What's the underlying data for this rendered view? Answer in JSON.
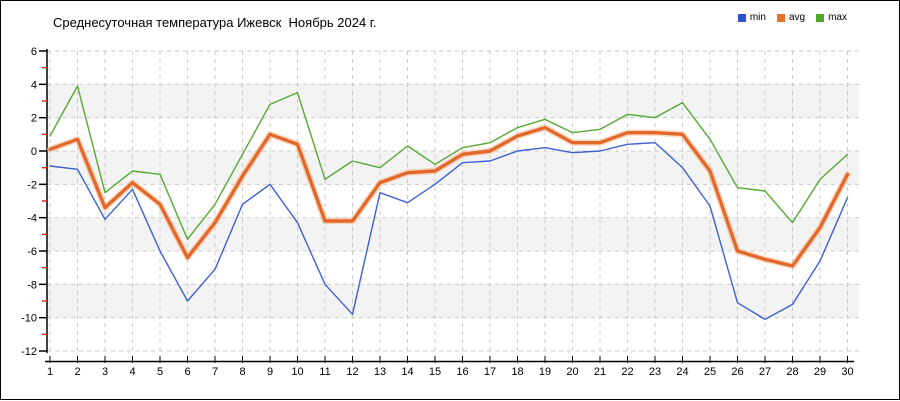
{
  "header": {
    "title": "Среднесуточная температура Ижевск  Ноябрь 2024 г."
  },
  "legend": {
    "items": [
      {
        "label": "min",
        "color": "#2d50d6"
      },
      {
        "label": "avg",
        "color": "#e8712f"
      },
      {
        "label": "max",
        "color": "#4faa28"
      }
    ]
  },
  "chart_data": {
    "type": "line",
    "title": "Среднесуточная температура Ижевск  Ноябрь 2024 г.",
    "xlabel": "",
    "ylabel": "",
    "x": [
      1,
      2,
      3,
      4,
      5,
      6,
      7,
      8,
      9,
      10,
      11,
      12,
      13,
      14,
      15,
      16,
      17,
      18,
      19,
      20,
      21,
      22,
      23,
      24,
      25,
      26,
      27,
      28,
      29,
      30
    ],
    "series": [
      {
        "name": "max",
        "color": "#55a833",
        "line_width": 1.4,
        "values": [
          0.9,
          3.9,
          -2.5,
          -1.2,
          -1.4,
          -5.3,
          -3.2,
          -0.2,
          2.8,
          3.5,
          -1.7,
          -0.6,
          -1.0,
          0.3,
          -0.8,
          0.2,
          0.5,
          1.4,
          1.9,
          1.1,
          1.3,
          2.2,
          2.0,
          2.9,
          0.7,
          -2.2,
          -2.4,
          -4.3,
          -1.7,
          -0.2
        ]
      },
      {
        "name": "min",
        "color": "#3d61d1",
        "line_width": 1.4,
        "values": [
          -0.9,
          -1.1,
          -4.1,
          -2.3,
          -6.0,
          -9.0,
          -7.1,
          -3.2,
          -2.0,
          -4.3,
          -8.0,
          -9.8,
          -2.5,
          -3.1,
          -2.0,
          -0.7,
          -0.6,
          0.0,
          0.2,
          -0.1,
          0.0,
          0.4,
          0.5,
          -1.0,
          -3.3,
          -9.1,
          -10.1,
          -9.2,
          -6.6,
          -2.8
        ]
      },
      {
        "name": "avg",
        "color": "#e4672c",
        "line_width": 3.4,
        "halo_color": "#f6bd92",
        "values": [
          0.1,
          0.7,
          -3.4,
          -1.9,
          -3.2,
          -6.4,
          -4.3,
          -1.5,
          1.0,
          0.4,
          -4.2,
          -4.2,
          -1.9,
          -1.3,
          -1.2,
          -0.2,
          0.0,
          0.9,
          1.4,
          0.5,
          0.5,
          1.1,
          1.1,
          1.0,
          -1.2,
          -6.0,
          -6.5,
          -6.9,
          -4.6,
          -1.4
        ]
      }
    ],
    "ylim": [
      -12,
      6
    ],
    "y_major_ticks": [
      6,
      4,
      2,
      0,
      -2,
      -4,
      -6,
      -8,
      -10,
      -12
    ],
    "y_minor_ticks": [
      5,
      3,
      1,
      -1,
      -3,
      -5,
      -7,
      -9,
      -11
    ],
    "grid": "dashed",
    "grid_color": "#c9c9c9",
    "band_fill": "#f3f3f3",
    "axis_color": "#000000",
    "minor_tick_color": "#e02a1e",
    "legend_position": "top-right"
  }
}
